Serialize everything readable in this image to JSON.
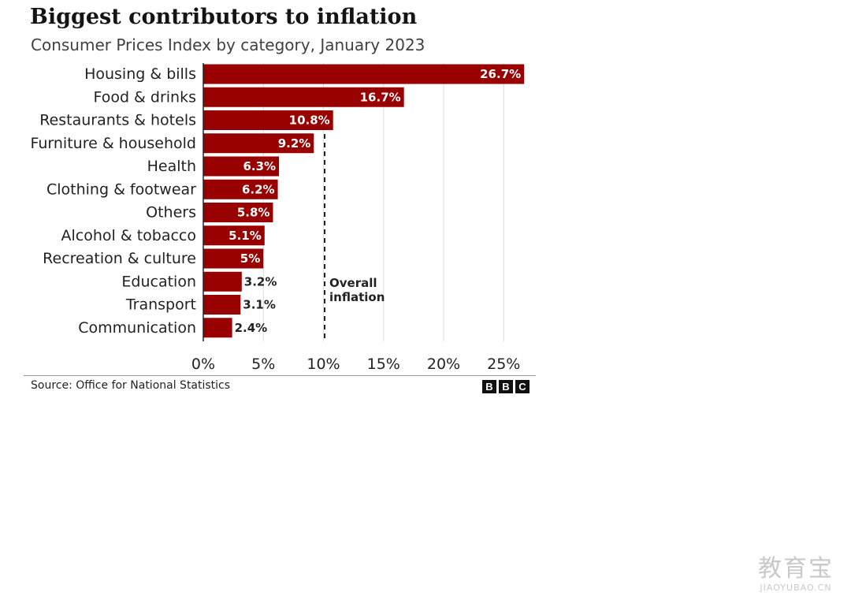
{
  "header": {
    "title": "Biggest contributors to inflation",
    "subtitle": "Consumer Prices Index by category, January 2023"
  },
  "chart_data": {
    "type": "bar",
    "orientation": "horizontal",
    "title": "Biggest contributors to inflation",
    "subtitle": "Consumer Prices Index by category, January 2023",
    "categories": [
      "Housing & bills",
      "Food & drinks",
      "Restaurants & hotels",
      "Furniture & household",
      "Health",
      "Clothing & footwear",
      "Others",
      "Alcohol & tobacco",
      "Recreation & culture",
      "Education",
      "Transport",
      "Communication"
    ],
    "values": [
      26.7,
      16.7,
      10.8,
      9.2,
      6.3,
      6.2,
      5.8,
      5.1,
      5,
      3.2,
      3.1,
      2.4
    ],
    "value_labels": [
      "26.7%",
      "16.7%",
      "10.8%",
      "9.2%",
      "6.3%",
      "6.2%",
      "5.8%",
      "5.1%",
      "5%",
      "3.2%",
      "3.1%",
      "2.4%"
    ],
    "xlim": [
      0,
      27
    ],
    "x_ticks": [
      0,
      5,
      10,
      15,
      20,
      25
    ],
    "x_tick_labels": [
      "0%",
      "5%",
      "10%",
      "15%",
      "20%",
      "25%"
    ],
    "grid": true,
    "bar_color": "#990000",
    "reference_line": {
      "value": 10.1,
      "label_lines": [
        "Overall",
        "inflation"
      ],
      "style": "dashed"
    }
  },
  "footer": {
    "source": "Source: Office for National Statistics",
    "logo_letters": [
      "B",
      "B",
      "C"
    ]
  },
  "watermark": {
    "primary": "教育宝",
    "secondary": "JIAOYUBAO.CN"
  }
}
